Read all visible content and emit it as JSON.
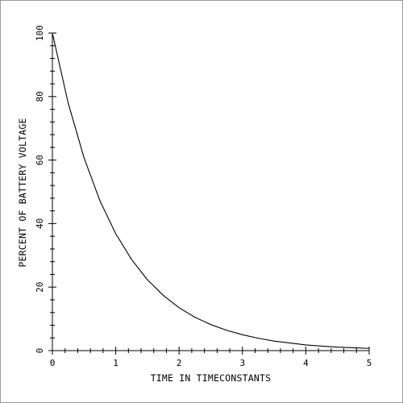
{
  "chart_data": {
    "type": "line",
    "xlabel": "TIME IN TIMECONSTANTS",
    "ylabel": "PERCENT OF BATTERY VOLTAGE",
    "xlim": [
      0,
      5
    ],
    "ylim": [
      0,
      100
    ],
    "xticks": [
      0,
      1,
      2,
      3,
      4,
      5
    ],
    "yticks": [
      0,
      20,
      40,
      60,
      80,
      100
    ],
    "grid": false,
    "series": [
      {
        "x": [
          0,
          0.25,
          0.5,
          0.75,
          1,
          1.25,
          1.5,
          1.75,
          2,
          2.25,
          2.5,
          2.75,
          3,
          3.25,
          3.5,
          3.75,
          4,
          4.25,
          4.5,
          4.75,
          5
        ],
        "y": [
          100,
          77.9,
          60.7,
          47.2,
          36.8,
          28.7,
          22.3,
          17.4,
          13.5,
          10.5,
          8.2,
          6.4,
          5.0,
          3.9,
          3.0,
          2.4,
          1.8,
          1.4,
          1.1,
          0.9,
          0.7
        ],
        "color": "#000000"
      }
    ]
  }
}
